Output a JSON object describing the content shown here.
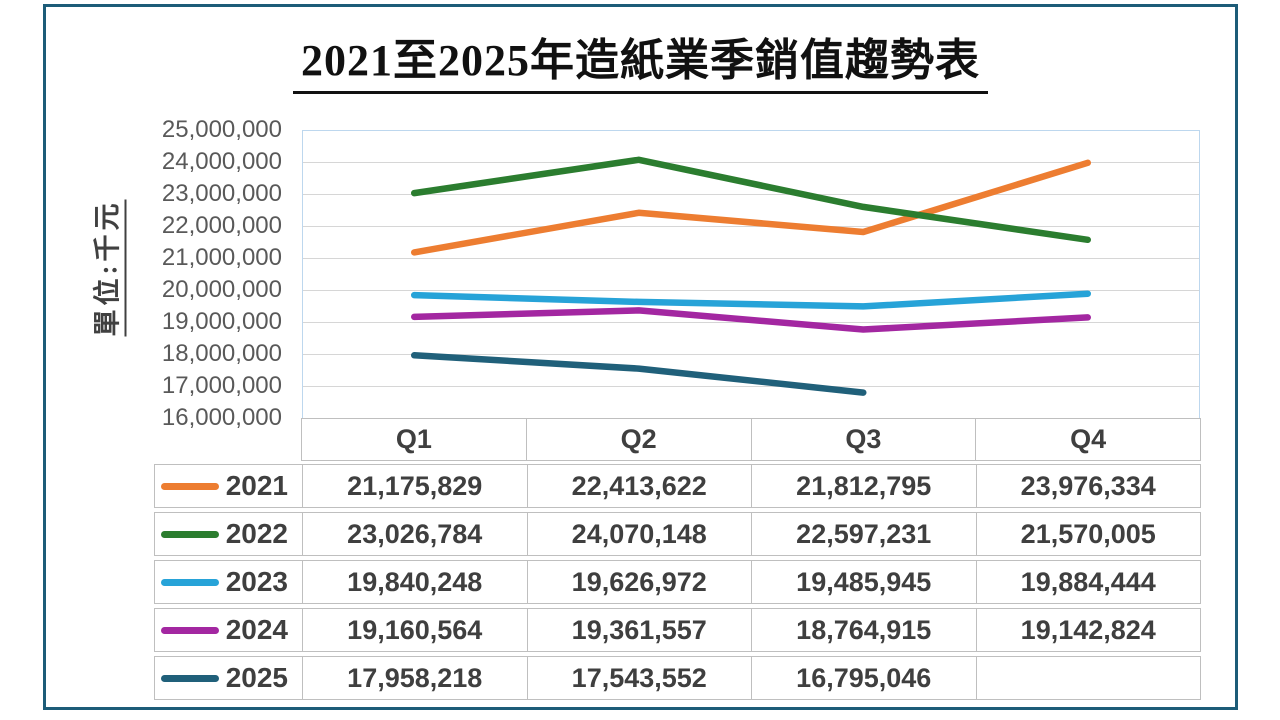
{
  "frame": {
    "border_color": "#1D5C78",
    "background": "#FFFFFF"
  },
  "title": "2021至2025年造紙業季銷值趨勢表",
  "chart_data": {
    "type": "line",
    "title": "2021至2025年造紙業季銷值趨勢表",
    "y_axis_title": "單位:千元",
    "categories": [
      "Q1",
      "Q2",
      "Q3",
      "Q4"
    ],
    "ylim": [
      16000000,
      25000000
    ],
    "ytick_step": 1000000,
    "grid": true,
    "legend_position": "table-left",
    "plot_border_color": "#BDD7EE",
    "gridline_color": "#D6D6D6",
    "series": [
      {
        "name": "2021",
        "color": "#ED7D31",
        "values": [
          21175829,
          22413622,
          21812795,
          23976334
        ]
      },
      {
        "name": "2022",
        "color": "#2B7D2F",
        "values": [
          23026784,
          24070148,
          22597231,
          21570005
        ]
      },
      {
        "name": "2023",
        "color": "#27A3D8",
        "values": [
          19840248,
          19626972,
          19485945,
          19884444
        ]
      },
      {
        "name": "2024",
        "color": "#A327A1",
        "values": [
          19160564,
          19361557,
          18764915,
          19142824
        ]
      },
      {
        "name": "2025",
        "color": "#20607A",
        "values": [
          17958218,
          17543552,
          16795046,
          null
        ]
      }
    ]
  },
  "y_tick_labels": [
    "25,000,000",
    "24,000,000",
    "23,000,000",
    "22,000,000",
    "21,000,000",
    "20,000,000",
    "19,000,000",
    "18,000,000",
    "17,000,000",
    "16,000,000"
  ],
  "table": {
    "column_headers": [
      "Q1",
      "Q2",
      "Q3",
      "Q4"
    ],
    "rows": [
      {
        "label": "2021",
        "swatch_color": "#ED7D31",
        "cells": [
          "21,175,829",
          "22,413,622",
          "21,812,795",
          "23,976,334"
        ]
      },
      {
        "label": "2022",
        "swatch_color": "#2B7D2F",
        "cells": [
          "23,026,784",
          "24,070,148",
          "22,597,231",
          "21,570,005"
        ]
      },
      {
        "label": "2023",
        "swatch_color": "#27A3D8",
        "cells": [
          "19,840,248",
          "19,626,972",
          "19,485,945",
          "19,884,444"
        ]
      },
      {
        "label": "2024",
        "swatch_color": "#A327A1",
        "cells": [
          "19,160,564",
          "19,361,557",
          "18,764,915",
          "19,142,824"
        ]
      },
      {
        "label": "2025",
        "swatch_color": "#20607A",
        "cells": [
          "17,958,218",
          "17,543,552",
          "16,795,046",
          ""
        ]
      }
    ]
  }
}
